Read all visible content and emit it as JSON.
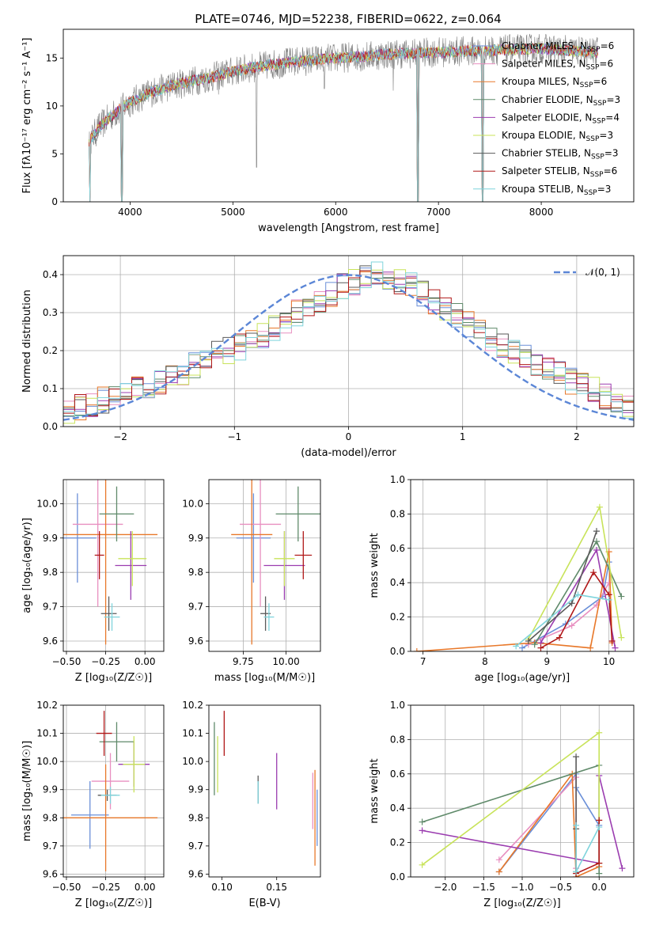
{
  "figure": {
    "title": "PLATE=0746, MJD=52238, FIBERID=0622, z=0.064"
  },
  "model_colors": [
    "#6a8fd8",
    "#e88fc0",
    "#e8782a",
    "#5f8a6a",
    "#9b3db0",
    "#c8e35a",
    "#5a5a5a",
    "#b01818",
    "#7fd4dc"
  ],
  "model_names": [
    "Chabrier MILES, N_SSP=6",
    "Salpeter MILES, N_SSP=6",
    "Kroupa MILES, N_SSP=6",
    "Chabrier ELODIE, N_SSP=3",
    "Salpeter ELODIE, N_SSP=4",
    "Kroupa ELODIE, N_SSP=3",
    "Chabrier STELIB, N_SSP=3",
    "Salpeter STELIB, N_SSP=6",
    "Kroupa STELIB, N_SSP=3"
  ],
  "chart_data": [
    {
      "id": "spectrum",
      "type": "line",
      "title": "PLATE=0746, MJD=52238, FIBERID=0622, z=0.064",
      "xlabel": "wavelength [Angstrom, rest frame]",
      "ylabel": "Flux [fλ10⁻¹⁷ erg cm⁻² s⁻¹ A⁻¹]",
      "xlim": [
        3350,
        8900
      ],
      "ylim": [
        0,
        18
      ],
      "xticks": [
        4000,
        5000,
        6000,
        7000,
        8000
      ],
      "yticks": [
        0,
        5,
        10,
        15
      ],
      "grid": false,
      "legend": "right",
      "legend_entries": [
        {
          "pre": "Chabrier MILES, N",
          "sub": "SSP",
          "post": "=6"
        },
        {
          "pre": "Salpeter MILES, N",
          "sub": "SSP",
          "post": "=6"
        },
        {
          "pre": "Kroupa MILES, N",
          "sub": "SSP",
          "post": "=6"
        },
        {
          "pre": "Chabrier ELODIE, N",
          "sub": "SSP",
          "post": "=3"
        },
        {
          "pre": "Salpeter ELODIE, N",
          "sub": "SSP",
          "post": "=4"
        },
        {
          "pre": "Kroupa ELODIE, N",
          "sub": "SSP",
          "post": "=3"
        },
        {
          "pre": "Chabrier STELIB, N",
          "sub": "SSP",
          "post": "=3"
        },
        {
          "pre": "Salpeter STELIB, N",
          "sub": "SSP",
          "post": "=6"
        },
        {
          "pre": "Kroupa STELIB, N",
          "sub": "SSP",
          "post": "=3"
        }
      ],
      "continuum": {
        "x": [
          3600,
          3700,
          3800,
          3900,
          4000,
          4200,
          4400,
          4600,
          4800,
          5000,
          5200,
          5500,
          5800,
          6000,
          6300,
          6500,
          6800,
          7000,
          7200,
          7500,
          8000,
          8500
        ],
        "y": [
          6.2,
          7.8,
          8.8,
          9.6,
          10.4,
          11.4,
          12.1,
          12.6,
          13.0,
          13.6,
          14.0,
          14.5,
          14.8,
          15.0,
          15.2,
          15.4,
          15.5,
          15.6,
          15.7,
          15.8,
          16.0,
          15.6
        ]
      },
      "dips": [
        {
          "x": 3610,
          "y": 0.0
        },
        {
          "x": 3920,
          "y": 0.0
        },
        {
          "x": 4860,
          "y": 11.2
        },
        {
          "x": 5230,
          "y": 3.6
        },
        {
          "x": 5890,
          "y": 11.8
        },
        {
          "x": 6560,
          "y": 11.6
        },
        {
          "x": 6800,
          "y": 0.0
        },
        {
          "x": 7430,
          "y": 0.0
        }
      ]
    },
    {
      "id": "residual-hist",
      "type": "line",
      "xlabel": "(data-model)/error",
      "ylabel": "Normed distribution",
      "xlim": [
        -2.5,
        2.5
      ],
      "ylim": [
        0,
        0.45
      ],
      "xticks": [
        -2,
        -1,
        0,
        1,
        2
      ],
      "yticks": [
        0.0,
        0.1,
        0.2,
        0.3,
        0.4
      ],
      "grid": true,
      "legend": "top-right",
      "gaussian_label": "𝒩(0, 1)",
      "gaussian_color": "#5b86d6",
      "bin_width": 0.1,
      "base_values": [
        0.04,
        0.05,
        0.06,
        0.07,
        0.08,
        0.09,
        0.1,
        0.11,
        0.12,
        0.13,
        0.14,
        0.16,
        0.17,
        0.19,
        0.2,
        0.21,
        0.22,
        0.24,
        0.26,
        0.28,
        0.3,
        0.31,
        0.33,
        0.35,
        0.37,
        0.38,
        0.39,
        0.4,
        0.39,
        0.38,
        0.37,
        0.35,
        0.33,
        0.31,
        0.29,
        0.27,
        0.25,
        0.23,
        0.21,
        0.2,
        0.18,
        0.17,
        0.15,
        0.14,
        0.12,
        0.11,
        0.1,
        0.08,
        0.07,
        0.05
      ]
    },
    {
      "id": "age-vs-z",
      "type": "scatter",
      "xlabel": "Z [log₁₀(Z/Z☉)]",
      "ylabel": "age  [log₁₀(age/yr)]",
      "xlim": [
        -0.52,
        0.12
      ],
      "ylim": [
        9.57,
        10.07
      ],
      "xticks": [
        -0.5,
        -0.25,
        0.0
      ],
      "xtick_labels": [
        "−0.50",
        "−0.25",
        "0.00"
      ],
      "yticks": [
        9.6,
        9.7,
        9.8,
        9.9,
        10.0
      ],
      "grid": true,
      "points": [
        {
          "x": -0.43,
          "xerr": 0.12,
          "y": 9.9,
          "yerr": 0.13
        },
        {
          "x": -0.3,
          "xerr": 0.16,
          "y": 9.94,
          "yerr": 0.24
        },
        {
          "x": -0.25,
          "xerr": 0.33,
          "y": 9.91,
          "yerr": 0.32
        },
        {
          "x": -0.18,
          "xerr": 0.11,
          "y": 9.97,
          "yerr": 0.08
        },
        {
          "x": -0.09,
          "xerr": 0.1,
          "y": 9.82,
          "yerr": 0.1
        },
        {
          "x": -0.08,
          "xerr": 0.09,
          "y": 9.84,
          "yerr": 0.08
        },
        {
          "x": -0.23,
          "xerr": 0.05,
          "y": 9.68,
          "yerr": 0.05
        },
        {
          "x": -0.29,
          "xerr": 0.03,
          "y": 9.85,
          "yerr": 0.07
        },
        {
          "x": -0.21,
          "xerr": 0.05,
          "y": 9.67,
          "yerr": 0.04
        }
      ]
    },
    {
      "id": "age-vs-mass",
      "type": "scatter",
      "xlabel": "mass [log₁₀(M/M☉)]",
      "ylabel": "",
      "xlim": [
        9.55,
        10.2
      ],
      "ylim": [
        9.57,
        10.07
      ],
      "xticks": [
        9.75,
        10.0
      ],
      "xtick_labels": [
        "9.75",
        "10.00"
      ],
      "yticks": [
        9.6,
        9.7,
        9.8,
        9.9,
        10.0
      ],
      "grid": true,
      "points": [
        {
          "x": 9.81,
          "xerr": 0.1,
          "y": 9.9,
          "yerr": 0.13
        },
        {
          "x": 9.85,
          "xerr": 0.12,
          "y": 9.94,
          "yerr": 0.24
        },
        {
          "x": 9.8,
          "xerr": 0.12,
          "y": 9.91,
          "yerr": 0.32
        },
        {
          "x": 10.07,
          "xerr": 0.13,
          "y": 9.97,
          "yerr": 0.08
        },
        {
          "x": 9.99,
          "xerr": 0.12,
          "y": 9.82,
          "yerr": 0.1
        },
        {
          "x": 9.99,
          "xerr": 0.06,
          "y": 9.84,
          "yerr": 0.08
        },
        {
          "x": 9.88,
          "xerr": 0.03,
          "y": 9.68,
          "yerr": 0.05
        },
        {
          "x": 10.1,
          "xerr": 0.05,
          "y": 9.85,
          "yerr": 0.07
        },
        {
          "x": 9.9,
          "xerr": 0.03,
          "y": 9.67,
          "yerr": 0.04
        }
      ]
    },
    {
      "id": "weight-vs-age",
      "type": "line",
      "xlabel": "age  [log₁₀(age/yr)]",
      "ylabel": "mass weight",
      "xlim": [
        6.8,
        10.4
      ],
      "ylim": [
        0,
        1.0
      ],
      "xticks": [
        7,
        8,
        9,
        10
      ],
      "yticks": [
        0.0,
        0.2,
        0.4,
        0.6,
        0.8,
        1.0
      ],
      "grid": true,
      "series": [
        {
          "x": [
            8.6,
            9.3,
            9.9,
            10.0
          ],
          "y": [
            0.02,
            0.16,
            0.32,
            0.52
          ]
        },
        {
          "x": [
            8.7,
            9.4,
            9.8,
            10.0
          ],
          "y": [
            0.04,
            0.15,
            0.27,
            0.4
          ]
        },
        {
          "x": [
            6.9,
            8.8,
            9.7,
            10.0,
            10.05
          ],
          "y": [
            0.0,
            0.05,
            0.02,
            0.58,
            0.05
          ]
        },
        {
          "x": [
            8.8,
            9.8,
            10.2
          ],
          "y": [
            0.04,
            0.64,
            0.32
          ]
        },
        {
          "x": [
            8.9,
            9.8,
            10.1
          ],
          "y": [
            0.05,
            0.59,
            0.02
          ]
        },
        {
          "x": [
            8.7,
            9.85,
            10.2
          ],
          "y": [
            0.07,
            0.84,
            0.08
          ]
        },
        {
          "x": [
            8.7,
            9.4,
            9.8
          ],
          "y": [
            0.06,
            0.28,
            0.7
          ]
        },
        {
          "x": [
            8.9,
            9.2,
            9.75,
            10.0,
            10.05
          ],
          "y": [
            0.02,
            0.08,
            0.46,
            0.33,
            0.06
          ]
        },
        {
          "x": [
            8.5,
            9.5,
            10.0
          ],
          "y": [
            0.03,
            0.33,
            0.3
          ]
        }
      ]
    },
    {
      "id": "mass-vs-z",
      "type": "scatter",
      "xlabel": "Z [log₁₀(Z/Z☉)]",
      "ylabel": "mass [log₁₀(M/M☉)]",
      "xlim": [
        -0.52,
        0.12
      ],
      "ylim": [
        9.59,
        10.2
      ],
      "xticks": [
        -0.5,
        -0.25,
        0.0
      ],
      "xtick_labels": [
        "−0.50",
        "−0.25",
        "0.00"
      ],
      "yticks": [
        9.6,
        9.7,
        9.8,
        9.9,
        10.0,
        10.1,
        10.2
      ],
      "grid": true,
      "points": [
        {
          "x": -0.35,
          "xerr": 0.12,
          "y": 9.81,
          "yerr": 0.12
        },
        {
          "x": -0.22,
          "xerr": 0.12,
          "y": 9.93,
          "yerr": 0.1
        },
        {
          "x": -0.25,
          "xerr": 0.33,
          "y": 9.8,
          "yerr": 0.19
        },
        {
          "x": -0.18,
          "xerr": 0.11,
          "y": 10.07,
          "yerr": 0.07
        },
        {
          "x": -0.07,
          "xerr": 0.1,
          "y": 9.99,
          "yerr": 0.08
        },
        {
          "x": -0.07,
          "xerr": 0.07,
          "y": 9.99,
          "yerr": 0.1
        },
        {
          "x": -0.24,
          "xerr": 0.06,
          "y": 9.88,
          "yerr": 0.02
        },
        {
          "x": -0.26,
          "xerr": 0.05,
          "y": 10.1,
          "yerr": 0.08
        },
        {
          "x": -0.22,
          "xerr": 0.06,
          "y": 9.88,
          "yerr": 0.03
        }
      ]
    },
    {
      "id": "mass-vs-ebv",
      "type": "scatter",
      "xlabel": "E(B-V)",
      "ylabel": "",
      "xlim": [
        0.088,
        0.19
      ],
      "ylim": [
        9.59,
        10.2
      ],
      "xticks": [
        0.1,
        0.15
      ],
      "xtick_labels": [
        "0.10",
        "0.15"
      ],
      "yticks": [
        9.6,
        9.7,
        9.8,
        9.9,
        10.0,
        10.1,
        10.2
      ],
      "grid": false,
      "points": [
        {
          "x": 0.187,
          "y": 9.8,
          "yerr": 0.1
        },
        {
          "x": 0.183,
          "y": 9.86,
          "yerr": 0.1
        },
        {
          "x": 0.185,
          "y": 9.8,
          "yerr": 0.17
        },
        {
          "x": 0.093,
          "y": 10.01,
          "yerr": 0.13
        },
        {
          "x": 0.15,
          "y": 9.93,
          "yerr": 0.1
        },
        {
          "x": 0.096,
          "y": 9.99,
          "yerr": 0.1
        },
        {
          "x": 0.133,
          "y": 9.9,
          "yerr": 0.05
        },
        {
          "x": 0.102,
          "y": 10.1,
          "yerr": 0.08
        },
        {
          "x": 0.133,
          "y": 9.89,
          "yerr": 0.04
        }
      ]
    },
    {
      "id": "weight-vs-z",
      "type": "line",
      "xlabel": "Z [log₁₀(Z/Z☉)]",
      "ylabel": "mass weight",
      "xlim": [
        -2.45,
        0.45
      ],
      "ylim": [
        0,
        1.0
      ],
      "xticks": [
        -2.0,
        -1.5,
        -1.0,
        -0.5,
        0.0
      ],
      "xtick_labels": [
        "−2.0",
        "−1.5",
        "−1.0",
        "−0.5",
        "0.0"
      ],
      "yticks": [
        0.0,
        0.2,
        0.4,
        0.6,
        0.8,
        1.0
      ],
      "grid": true,
      "series": [
        {
          "x": [
            -1.3,
            -0.3,
            -0.3,
            0.0
          ],
          "y": [
            0.03,
            0.6,
            0.52,
            0.3
          ]
        },
        {
          "x": [
            -1.3,
            -0.3,
            -0.3
          ],
          "y": [
            0.1,
            0.58,
            0.05
          ]
        },
        {
          "x": [
            -1.3,
            -0.35,
            -0.3,
            0.0
          ],
          "y": [
            0.03,
            0.6,
            0.0,
            0.06
          ]
        },
        {
          "x": [
            -2.3,
            0.0,
            0.0
          ],
          "y": [
            0.32,
            0.65,
            0.02
          ]
        },
        {
          "x": [
            -2.3,
            0.0,
            0.0,
            0.3
          ],
          "y": [
            0.27,
            0.08,
            0.59,
            0.05
          ]
        },
        {
          "x": [
            -2.3,
            0.0,
            0.0
          ],
          "y": [
            0.07,
            0.84,
            0.08
          ]
        },
        {
          "x": [
            -0.3,
            -0.3,
            -0.3
          ],
          "y": [
            0.7,
            0.28,
            0.03
          ]
        },
        {
          "x": [
            -0.3,
            0.0,
            0.0
          ],
          "y": [
            0.02,
            0.08,
            0.33
          ]
        },
        {
          "x": [
            -0.3,
            -0.3,
            0.0
          ],
          "y": [
            0.3,
            0.03,
            0.29
          ]
        }
      ]
    }
  ]
}
